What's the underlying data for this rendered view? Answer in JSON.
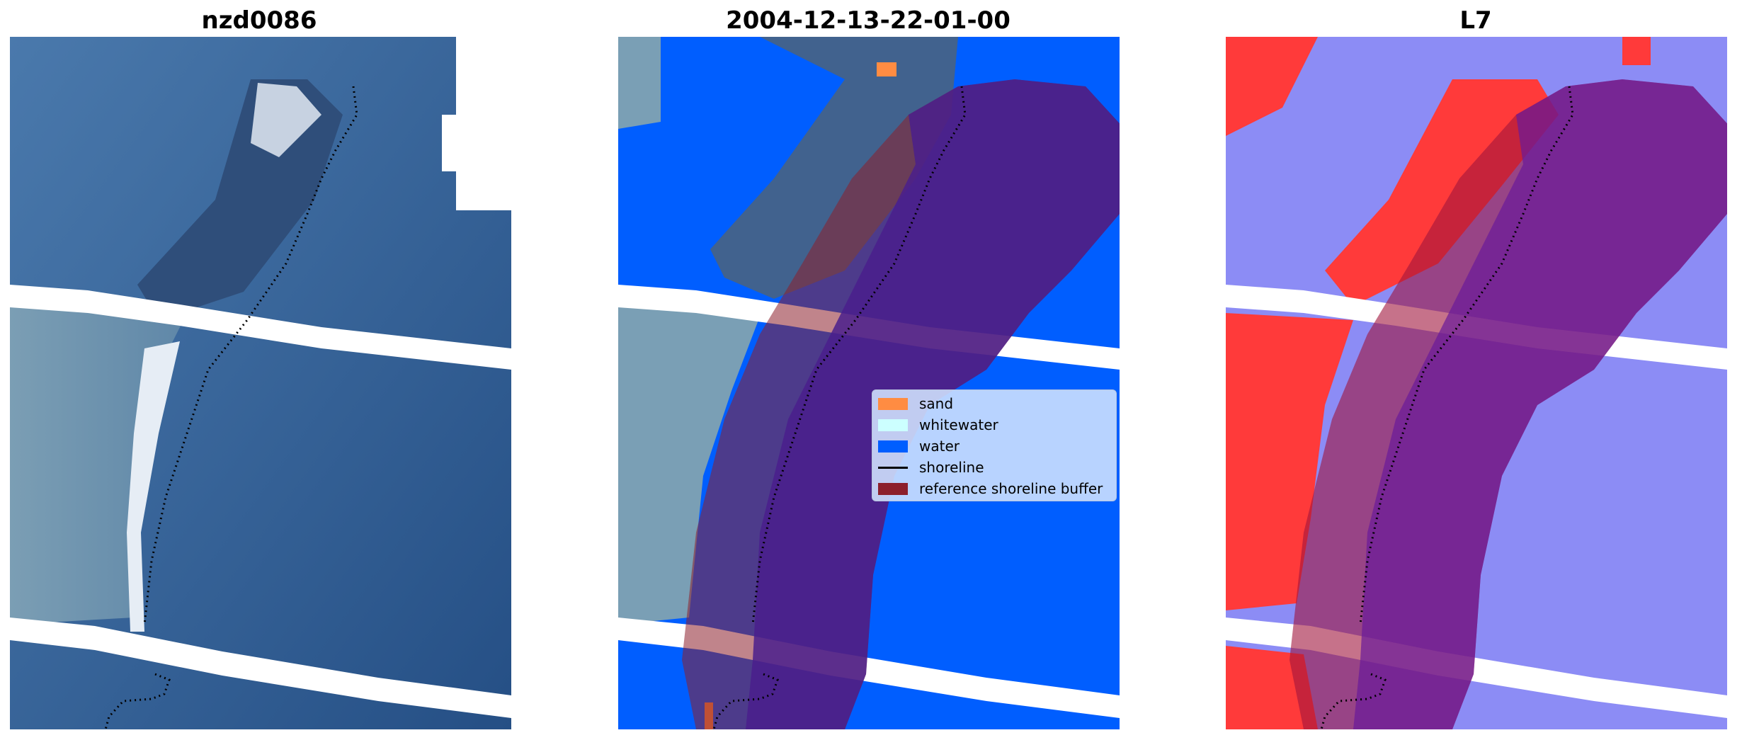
{
  "panels": [
    {
      "title": "nzd0086",
      "kind": "rgb"
    },
    {
      "title": "2004-12-13-22-01-00",
      "kind": "classified"
    },
    {
      "title": "L7",
      "kind": "index"
    }
  ],
  "legend": {
    "items": [
      {
        "label": "sand",
        "type": "patch",
        "color": "#ff8c42"
      },
      {
        "label": "whitewater",
        "type": "patch",
        "color": "#ccffff"
      },
      {
        "label": "water",
        "type": "patch",
        "color": "#005eff"
      },
      {
        "label": "shoreline",
        "type": "line",
        "color": "#000000"
      },
      {
        "label": "reference shoreline buffer",
        "type": "patch",
        "color": "#8c1f2c"
      }
    ]
  },
  "colors": {
    "water_class": "#005eff",
    "sand_class": "#ff8c42",
    "buffer_overlay": "#8c1f2c",
    "rgb_water": "#2e5e98",
    "rgb_sand": "#c9d1df",
    "index_water": "#8c8cf5",
    "index_land": "#ff3838"
  }
}
